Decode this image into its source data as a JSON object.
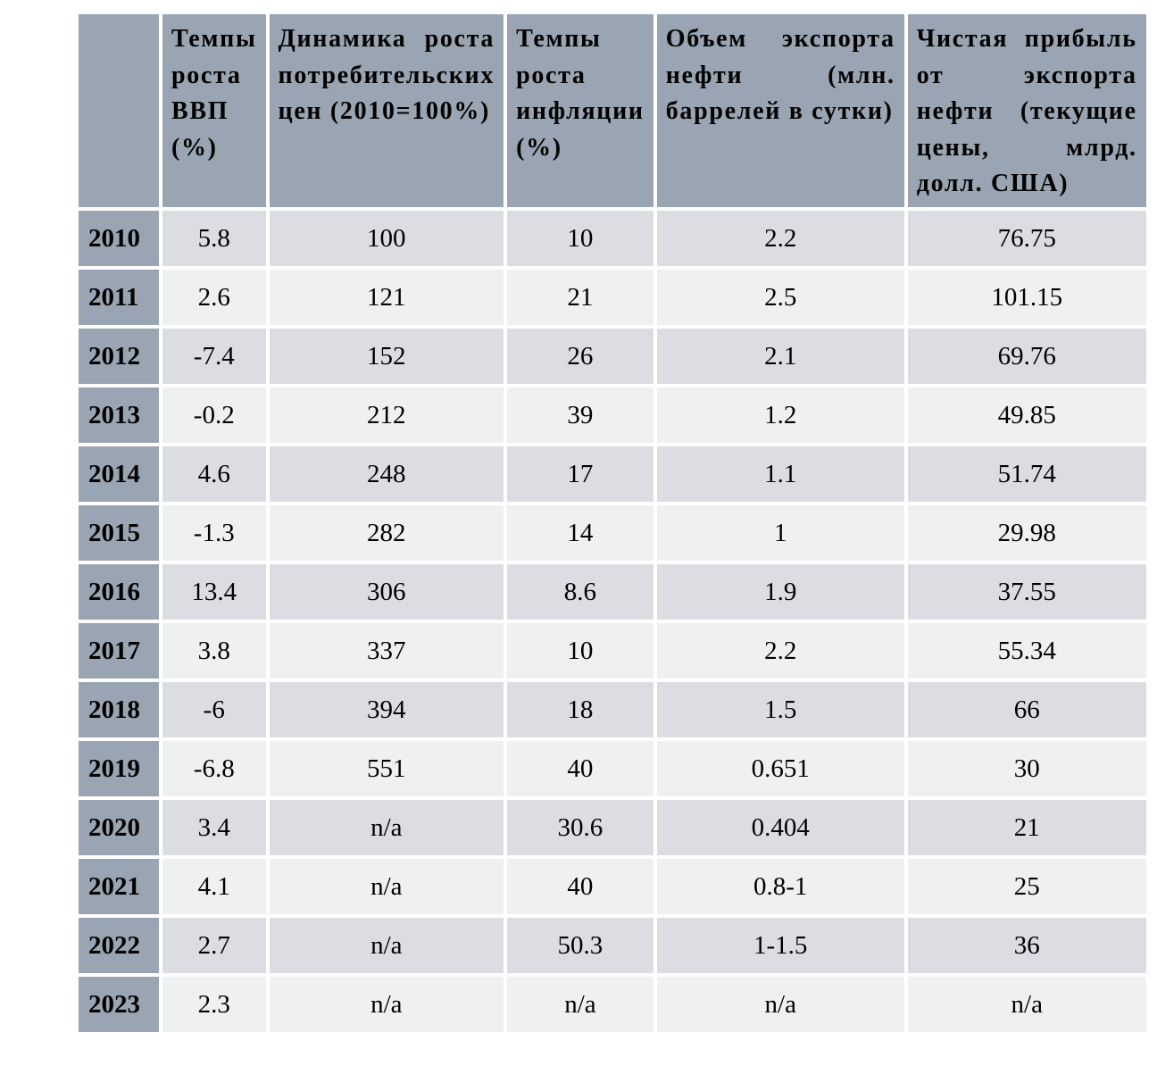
{
  "table": {
    "columns": [
      {
        "label": ""
      },
      {
        "label": "Темпы роста ВВП (%)"
      },
      {
        "label": "Динамика роста потребительских цен (2010=100%)"
      },
      {
        "label": "Темпы роста инфляции (%)"
      },
      {
        "label": "Объем экспорта нефти (млн. баррелей в сутки)"
      },
      {
        "label": "Чистая прибыль от экспорта нефти (текущие цены, млрд. долл. США)"
      }
    ],
    "rows": [
      {
        "year": "2010",
        "values": [
          "5.8",
          "100",
          "10",
          "2.2",
          "76.75"
        ]
      },
      {
        "year": "2011",
        "values": [
          "2.6",
          "121",
          "21",
          "2.5",
          "101.15"
        ]
      },
      {
        "year": "2012",
        "values": [
          "-7.4",
          "152",
          "26",
          "2.1",
          "69.76"
        ]
      },
      {
        "year": "2013",
        "values": [
          "-0.2",
          "212",
          "39",
          "1.2",
          "49.85"
        ]
      },
      {
        "year": "2014",
        "values": [
          "4.6",
          "248",
          "17",
          "1.1",
          "51.74"
        ]
      },
      {
        "year": "2015",
        "values": [
          "-1.3",
          "282",
          "14",
          "1",
          "29.98"
        ]
      },
      {
        "year": "2016",
        "values": [
          "13.4",
          "306",
          "8.6",
          "1.9",
          "37.55"
        ]
      },
      {
        "year": "2017",
        "values": [
          "3.8",
          "337",
          "10",
          "2.2",
          "55.34"
        ]
      },
      {
        "year": "2018",
        "values": [
          "-6",
          "394",
          "18",
          "1.5",
          "66"
        ]
      },
      {
        "year": "2019",
        "values": [
          "-6.8",
          "551",
          "40",
          "0.651",
          "30"
        ]
      },
      {
        "year": "2020",
        "values": [
          "3.4",
          "n/a",
          "30.6",
          "0.404",
          "21"
        ]
      },
      {
        "year": "2021",
        "values": [
          "4.1",
          "n/a",
          "40",
          "0.8-1",
          "25"
        ]
      },
      {
        "year": "2022",
        "values": [
          "2.7",
          "n/a",
          "50.3",
          "1-1.5",
          "36"
        ]
      },
      {
        "year": "2023",
        "values": [
          "2.3",
          "n/a",
          "n/a",
          "n/a",
          "n/a"
        ]
      }
    ],
    "colors": {
      "header_bg": "#9aa5b3",
      "row_dark_bg": "#dbdde2",
      "row_light_bg": "#eef0f2",
      "gap": "#ffffff",
      "text": "#000000"
    }
  }
}
